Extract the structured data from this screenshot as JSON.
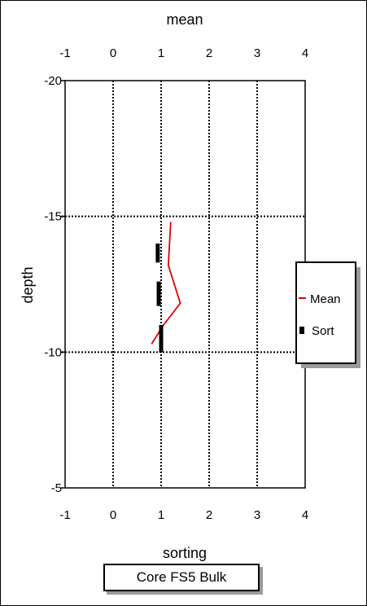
{
  "chart_data": {
    "type": "line",
    "top_axis_label": "mean",
    "bottom_axis_label": "sorting",
    "ylabel": "depth",
    "xlim": [
      -1,
      4
    ],
    "ylim": [
      -20,
      -5
    ],
    "x_ticks": [
      -1,
      0,
      1,
      2,
      3,
      4
    ],
    "y_ticks": [
      -20,
      -15,
      -10,
      -5
    ],
    "x_tick_labels": [
      "-1",
      "0",
      "1",
      "2",
      "3",
      "4"
    ],
    "y_tick_labels": [
      "-20",
      "-15",
      "-10",
      "-5"
    ],
    "grid": true,
    "legend_placement": "right",
    "series": [
      {
        "name": "Mean",
        "style": "line",
        "color": "#e00000",
        "points": [
          [
            1.2,
            -14.8
          ],
          [
            1.15,
            -13.2
          ],
          [
            1.4,
            -11.8
          ],
          [
            1.05,
            -11.0
          ],
          [
            0.8,
            -10.3
          ]
        ]
      },
      {
        "name": "Sort",
        "style": "depth-interval-bar",
        "color": "#000000",
        "points": [
          {
            "x": 0.93,
            "y_top": -14.0,
            "y_bottom": -13.3
          },
          {
            "x": 0.95,
            "y_top": -12.6,
            "y_bottom": -11.7
          },
          {
            "x": 1.0,
            "y_top": -11.0,
            "y_bottom": -10.0
          }
        ]
      }
    ]
  },
  "legend": {
    "mean_label": "Mean",
    "sort_label": "Sort"
  },
  "caption": "Core FS5 Bulk"
}
